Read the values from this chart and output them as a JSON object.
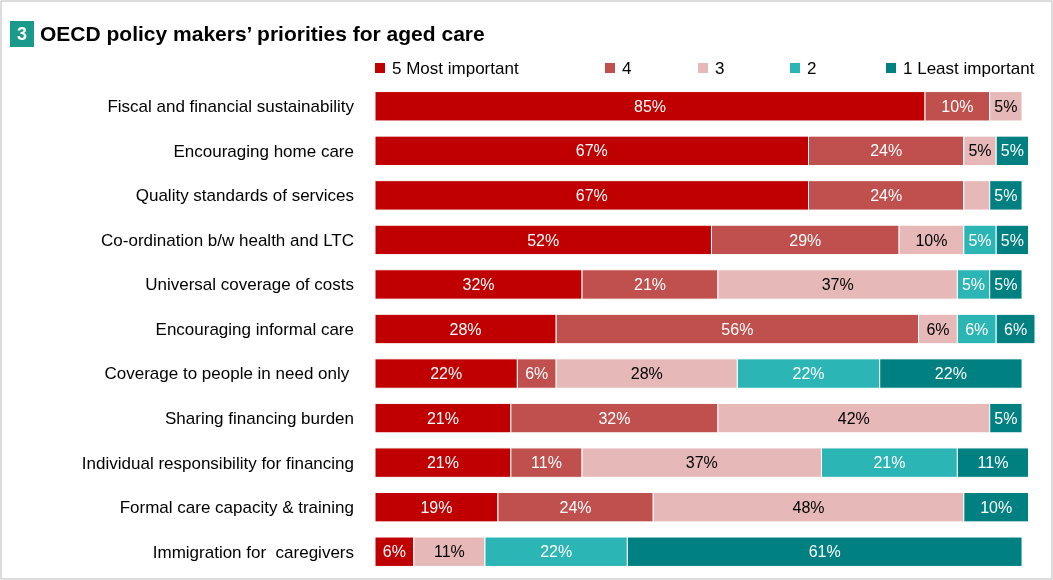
{
  "chart_data": {
    "type": "bar",
    "orientation": "horizontal",
    "stacked": true,
    "title": "OECD policy makers’ priorities for aged care",
    "annotations": [
      "3"
    ],
    "legend": "top",
    "tick_labels": "y",
    "categories": [
      "Fiscal and financial sustainability",
      "Encouraging home care",
      "Quality standards of services",
      "Co-ordination b/w health and LTC",
      "Universal coverage of costs",
      "Encouraging informal care",
      "Coverage to people in need only ",
      "Sharing financing burden",
      "Individual responsibility for financing",
      "Formal care capacity & training",
      "Immigration for  caregivers"
    ],
    "series": [
      {
        "name": "5 Most important",
        "color": "#c00000",
        "values": [
          85,
          67,
          67,
          52,
          32,
          28,
          22,
          21,
          21,
          19,
          6
        ],
        "value_labels": [
          "85%",
          "67%",
          "67%",
          "52%",
          "32%",
          "28%",
          "22%",
          "21%",
          "21%",
          "19%",
          "6%"
        ]
      },
      {
        "name": "4",
        "color": "#c0504d",
        "values": [
          10,
          24,
          24,
          29,
          21,
          56,
          6,
          32,
          11,
          24,
          null
        ],
        "value_labels": [
          "10%",
          "24%",
          "24%",
          "29%",
          "21%",
          "56%",
          "6%",
          "32%",
          "11%",
          "24%",
          null
        ]
      },
      {
        "name": "3",
        "color": "#e6b9b8",
        "values": [
          5,
          5,
          4,
          10,
          37,
          6,
          28,
          42,
          37,
          48,
          11
        ],
        "value_labels": [
          "5%",
          "5%",
          null,
          "10%",
          "37%",
          "6%",
          "28%",
          "42%",
          "37%",
          "48%",
          "11%"
        ]
      },
      {
        "name": "2",
        "color": "#2bb5b5",
        "values": [
          null,
          null,
          null,
          5,
          5,
          6,
          22,
          null,
          21,
          null,
          22
        ],
        "value_labels": [
          null,
          null,
          null,
          "5%",
          "5%",
          "6%",
          "22%",
          null,
          "21%",
          null,
          "22%"
        ]
      },
      {
        "name": "1 Least important",
        "color": "#008080",
        "values": [
          null,
          5,
          5,
          5,
          5,
          6,
          22,
          5,
          11,
          10,
          61
        ],
        "value_labels": [
          null,
          "5%",
          "5%",
          "5%",
          "5%",
          "6%",
          "22%",
          "5%",
          "11%",
          "10%",
          "61%"
        ]
      }
    ]
  }
}
